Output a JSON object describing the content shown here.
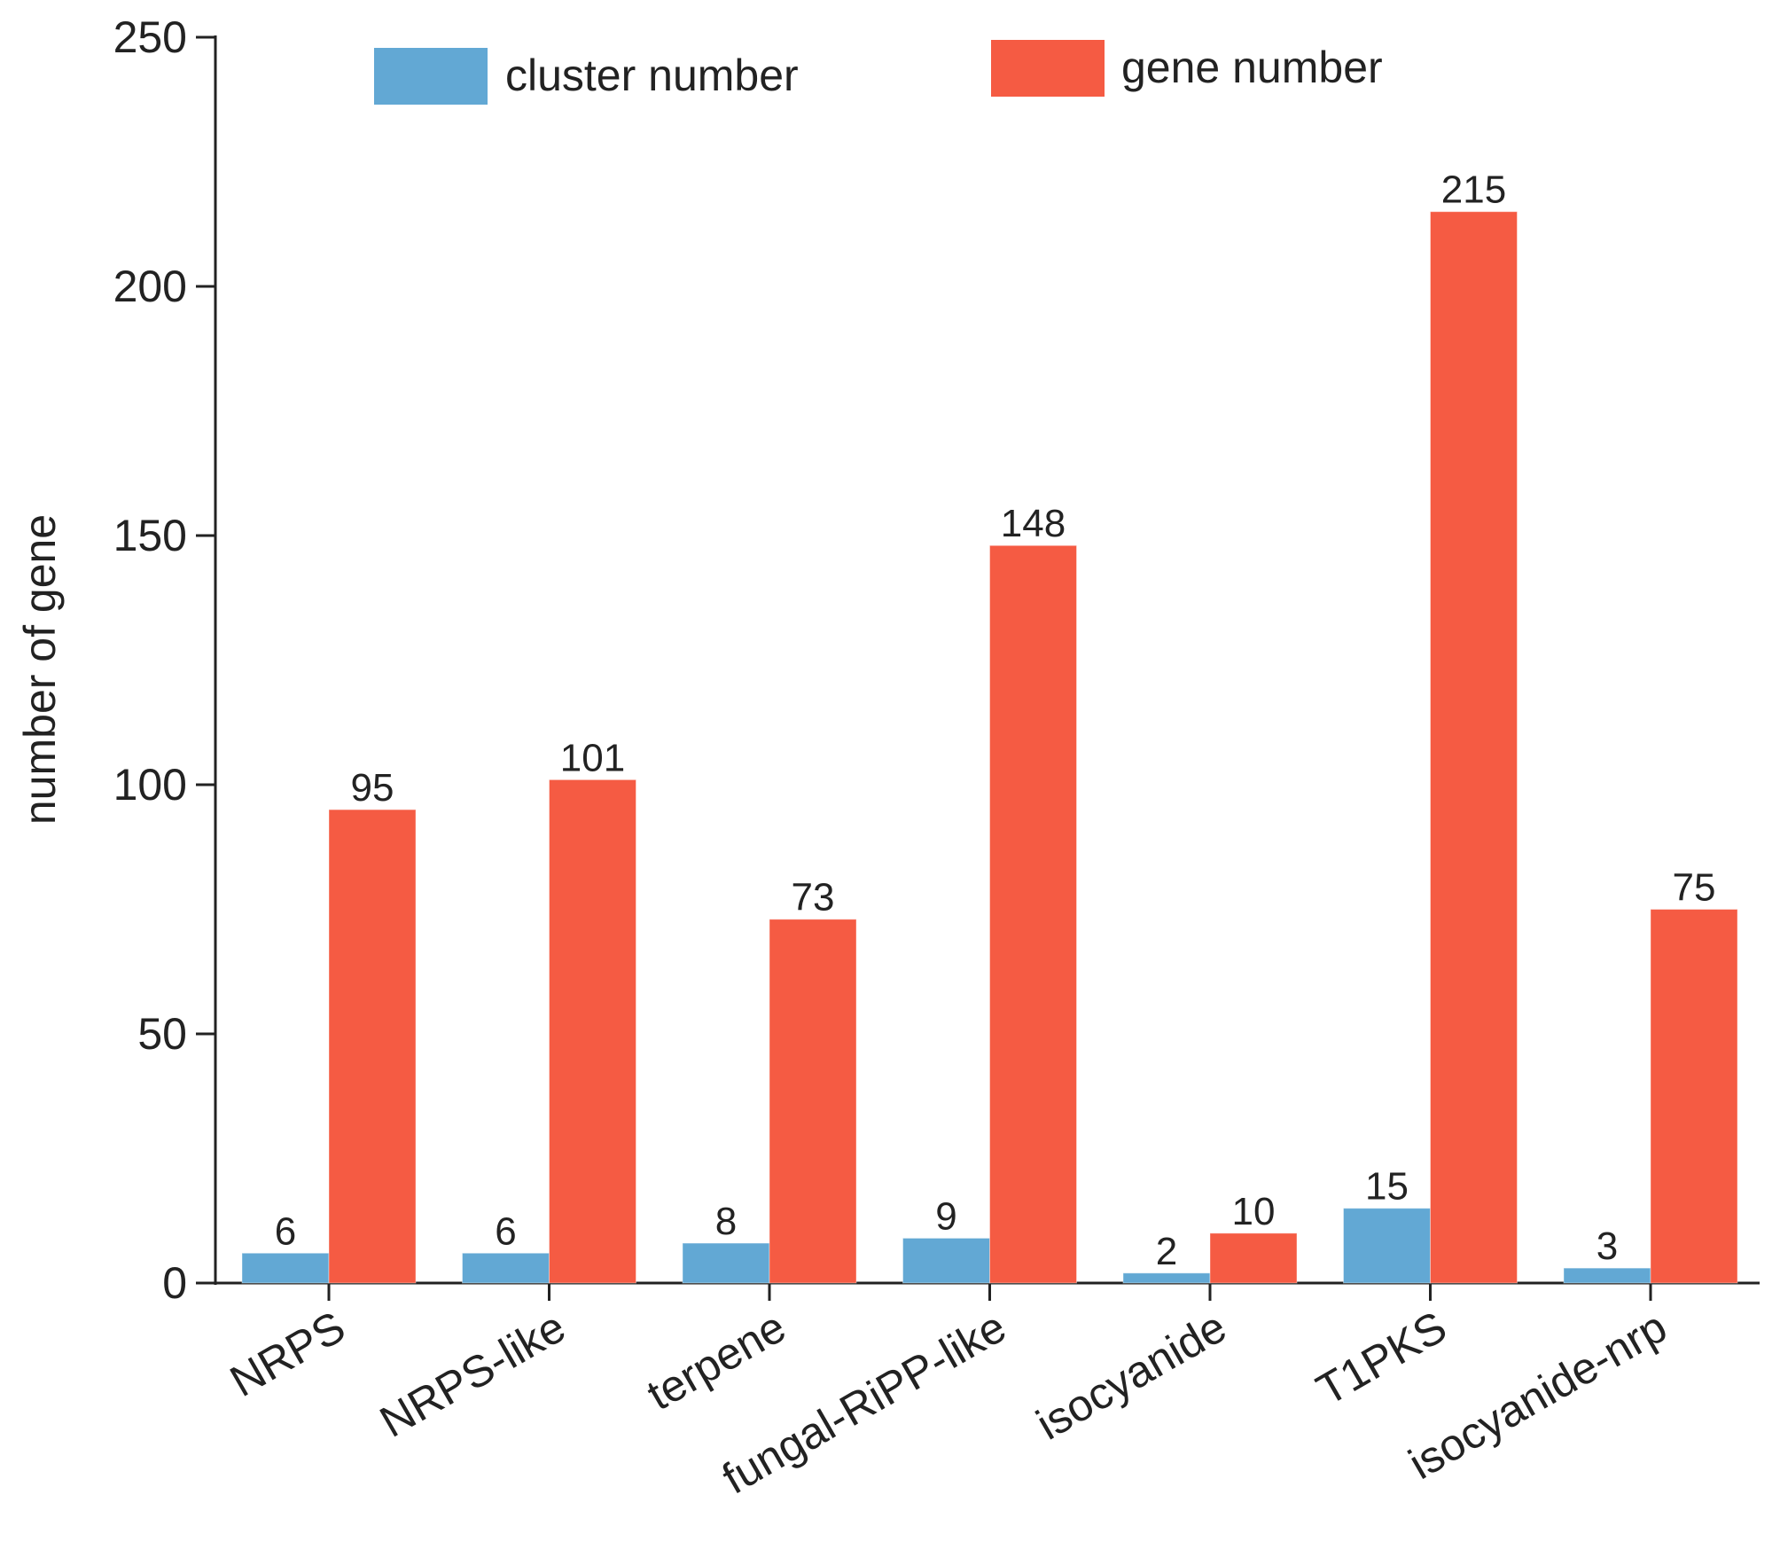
{
  "chart_data": {
    "type": "bar",
    "title": "",
    "xlabel": "",
    "ylabel": "number of gene",
    "ylim": [
      0,
      250
    ],
    "yticks": [
      0,
      50,
      100,
      150,
      200,
      250
    ],
    "grid": false,
    "legend_position": "top",
    "categories": [
      "NRPS",
      "NRPS-like",
      "terpene",
      "fungal-RiPP-like",
      "isocyanide",
      "T1PKS",
      "isocyanide-nrp"
    ],
    "series": [
      {
        "name": "cluster number",
        "color": "#62a8d4",
        "values": [
          6,
          6,
          8,
          9,
          2,
          15,
          3
        ]
      },
      {
        "name": "gene number",
        "color": "#f55b43",
        "values": [
          95,
          101,
          73,
          148,
          10,
          215,
          75
        ]
      }
    ]
  }
}
